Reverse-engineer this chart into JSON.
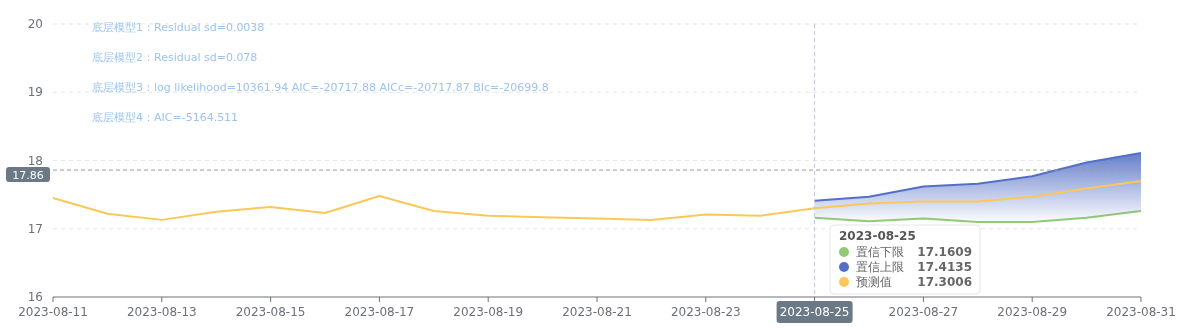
{
  "chart_data": {
    "type": "line",
    "x": [
      "2023-08-11",
      "2023-08-12",
      "2023-08-13",
      "2023-08-14",
      "2023-08-15",
      "2023-08-16",
      "2023-08-17",
      "2023-08-18",
      "2023-08-19",
      "2023-08-20",
      "2023-08-21",
      "2023-08-22",
      "2023-08-23",
      "2023-08-24",
      "2023-08-25",
      "2023-08-26",
      "2023-08-27",
      "2023-08-28",
      "2023-08-29",
      "2023-08-30",
      "2023-08-31"
    ],
    "series": [
      {
        "name": "置信下限",
        "color": "#91cc75",
        "values": [
          null,
          null,
          null,
          null,
          null,
          null,
          null,
          null,
          null,
          null,
          null,
          null,
          null,
          null,
          17.16,
          17.11,
          17.15,
          17.1,
          17.1,
          17.16,
          17.26
        ]
      },
      {
        "name": "置信上限",
        "color": "#5470c6",
        "type": "area",
        "values": [
          null,
          null,
          null,
          null,
          null,
          null,
          null,
          null,
          null,
          null,
          null,
          null,
          null,
          null,
          17.41,
          17.47,
          17.62,
          17.66,
          17.77,
          17.97,
          18.11
        ]
      },
      {
        "name": "预测值",
        "color": "#fac858",
        "values": [
          17.45,
          17.22,
          17.13,
          17.25,
          17.32,
          17.23,
          17.48,
          17.26,
          17.19,
          17.17,
          17.15,
          17.13,
          17.21,
          17.19,
          17.3,
          17.37,
          17.4,
          17.4,
          17.47,
          17.59,
          17.7
        ]
      }
    ],
    "xlim": [
      "2023-08-11",
      "2023-08-31"
    ],
    "xticks": [
      "2023-08-11",
      "2023-08-13",
      "2023-08-15",
      "2023-08-17",
      "2023-08-19",
      "2023-08-21",
      "2023-08-23",
      "2023-08-25",
      "2023-08-27",
      "2023-08-29",
      "2023-08-31"
    ],
    "ylim": [
      16,
      20
    ],
    "yticks": [
      16,
      17,
      18,
      19,
      20
    ],
    "grid": "y",
    "marker": "none",
    "line_style": "solid",
    "legend": "bottom right",
    "legend_title": "2023-08-25",
    "ref_lines": [
      {
        "axis": "y",
        "value": 17.86,
        "label": "17.86"
      },
      {
        "axis": "x",
        "value": "2023-08-25",
        "label": null
      }
    ],
    "annotations": [
      "底层模型1：Residual sd=0.0038",
      "底层模型2：Residual sd=0.078",
      "底层模型3：log likelihood=10361.94 AIC=-20717.88 AICc=-20717.87 BIc=-20699.8",
      "底层模型4：AIC=-5164.511",
      "17.1609",
      "17.4135",
      "17.3006"
    ]
  }
}
